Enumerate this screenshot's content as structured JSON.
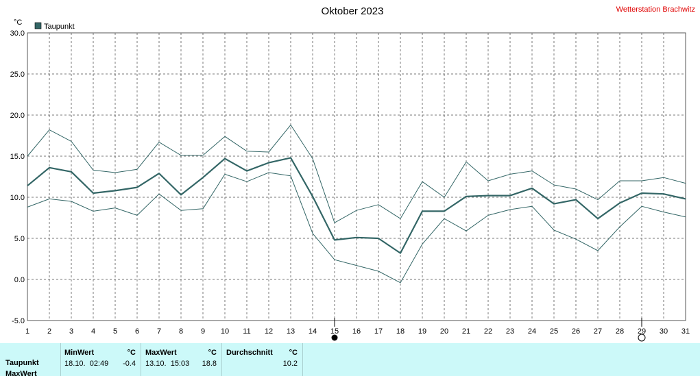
{
  "header": {
    "title": "Oktober 2023",
    "station": "Wetterstation Brachwitz"
  },
  "chart_data": {
    "type": "line",
    "unit_label": "°C",
    "legend": [
      {
        "label": "Taupunkt",
        "color": "#336666"
      }
    ],
    "x": [
      1,
      2,
      3,
      4,
      5,
      6,
      7,
      8,
      9,
      10,
      11,
      12,
      13,
      14,
      15,
      16,
      17,
      18,
      19,
      20,
      21,
      22,
      23,
      24,
      25,
      26,
      27,
      28,
      29,
      30,
      31
    ],
    "xlim": [
      1,
      31
    ],
    "ylim": [
      -5,
      30
    ],
    "yticks": [
      "-5.0",
      "0.0",
      "5.0",
      "10.0",
      "15.0",
      "20.0",
      "25.0",
      "30.0"
    ],
    "grid": true,
    "markers": [
      {
        "day": 15,
        "symbol": "full-moon"
      },
      {
        "day": 29,
        "symbol": "new-moon"
      }
    ],
    "series": [
      {
        "name": "Taupunkt",
        "color": "#336666",
        "width": 2.2,
        "values": [
          11.4,
          13.6,
          13.1,
          10.5,
          10.8,
          11.2,
          12.9,
          10.3,
          12.4,
          14.7,
          13.2,
          14.2,
          14.8,
          10.1,
          4.8,
          5.1,
          5.0,
          3.2,
          8.3,
          8.3,
          10.1,
          10.2,
          10.2,
          11.1,
          9.2,
          9.7,
          7.4,
          9.3,
          10.5,
          10.4,
          9.8
        ]
      },
      {
        "color": "#336666",
        "width": 1,
        "values": [
          15.0,
          18.2,
          16.8,
          13.3,
          13.0,
          13.4,
          16.7,
          15.1,
          15.1,
          17.4,
          15.6,
          15.5,
          18.8,
          14.7,
          6.9,
          8.4,
          9.1,
          7.4,
          11.9,
          10.0,
          14.3,
          12.0,
          12.8,
          13.2,
          11.5,
          11.0,
          9.7,
          12.0,
          12.0,
          12.4,
          11.7
        ]
      },
      {
        "color": "#336666",
        "width": 1,
        "values": [
          8.8,
          9.8,
          9.5,
          8.3,
          8.7,
          7.8,
          10.4,
          8.4,
          8.6,
          12.8,
          11.9,
          13.0,
          12.6,
          5.6,
          2.4,
          1.7,
          1.0,
          -0.4,
          4.3,
          7.4,
          5.9,
          7.8,
          8.5,
          8.9,
          6.0,
          4.9,
          3.5,
          6.4,
          8.9,
          8.2,
          7.6
        ]
      }
    ]
  },
  "stats": {
    "min": {
      "header": "MinWert",
      "unit": "°C",
      "time": "18.10.  02:49",
      "value": "-0.4"
    },
    "max": {
      "header": "MaxWert",
      "unit": "°C",
      "time": "13.10.  15:03",
      "value": "18.8"
    },
    "avg": {
      "header": "Durchschnitt",
      "unit": "°C",
      "value": "10.2"
    },
    "row_label": "Taupunkt",
    "row_label_2": "MaxWert"
  }
}
